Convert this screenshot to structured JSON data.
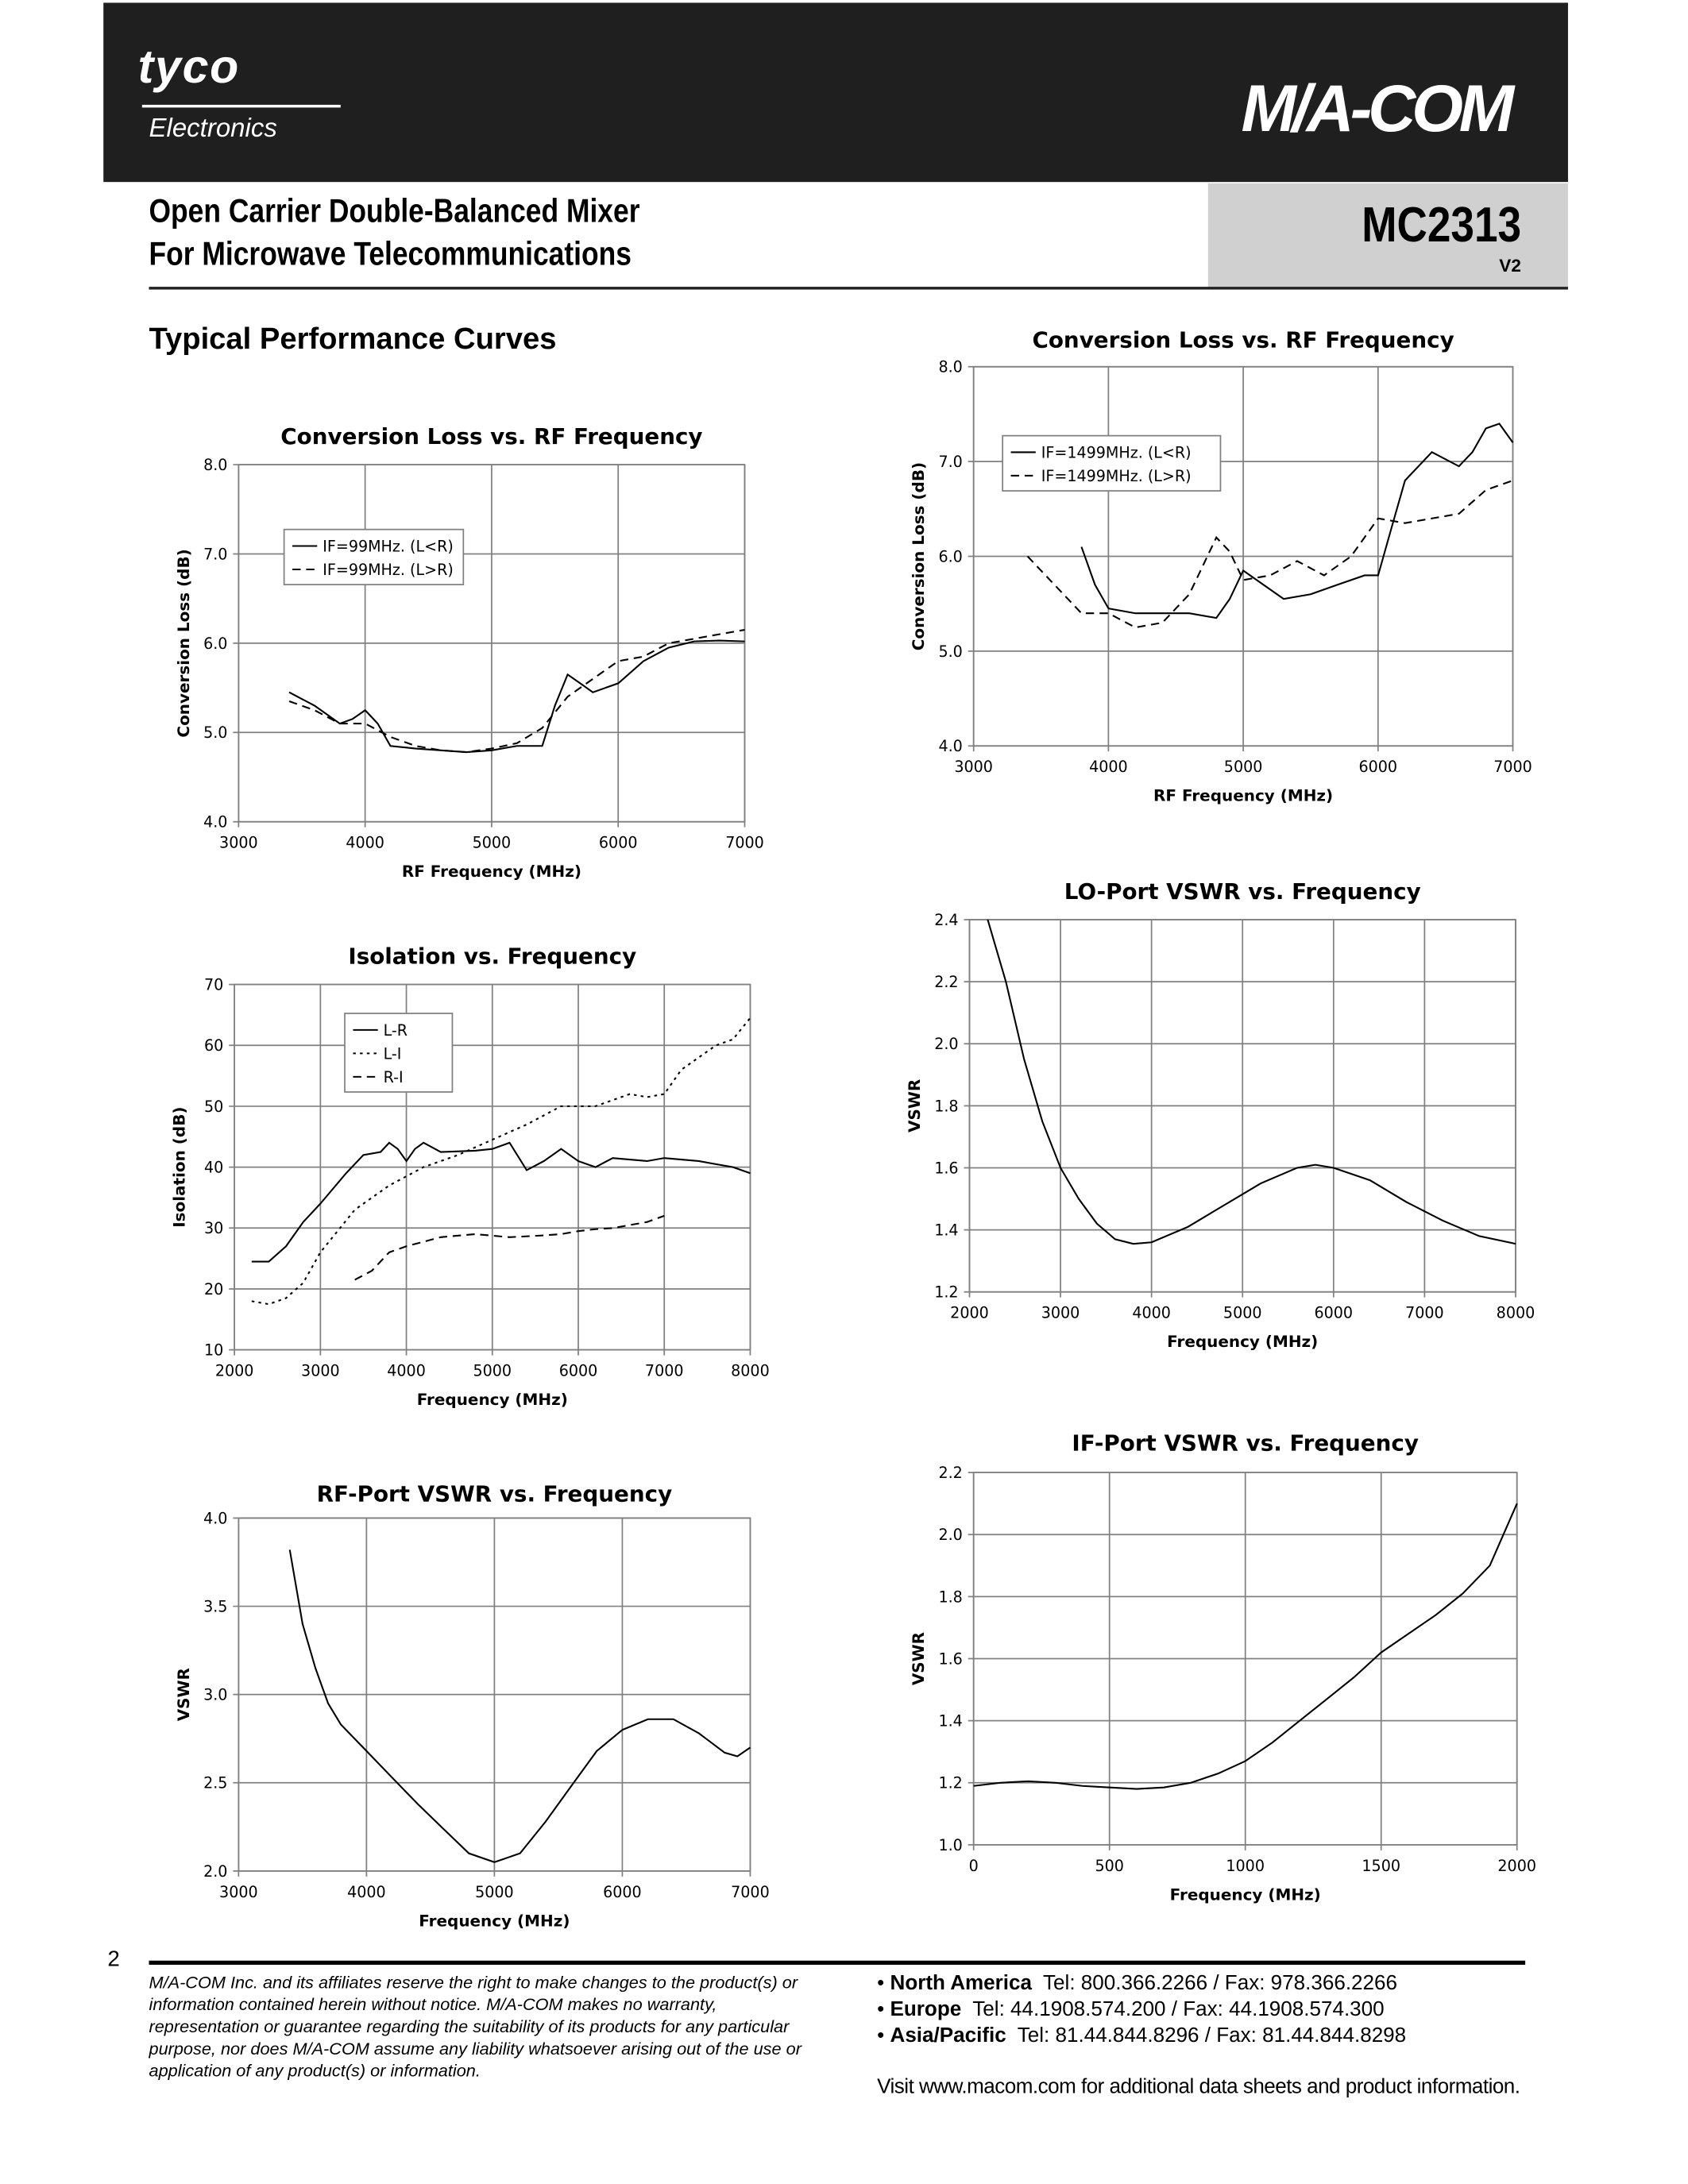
{
  "header": {
    "brand_left": "tyco",
    "brand_left_sub": "Electronics",
    "brand_right": "M/A-COM",
    "title_line1": "Open Carrier Double-Balanced Mixer",
    "title_line2": "For Microwave Telecommunications",
    "part_number": "MC2313",
    "version": "V2"
  },
  "section_title": "Typical Performance Curves",
  "colors": {
    "header_bg": "#1f1f1f",
    "part_box": "#d0d0d0",
    "grid": "#808080"
  },
  "chart_data": [
    {
      "type": "line",
      "title": "Conversion Loss vs. RF Frequency",
      "xlabel": "RF Frequency (MHz)",
      "ylabel": "Conversion Loss (dB)",
      "xlim": [
        3000,
        7000
      ],
      "ylim": [
        4.0,
        8.0
      ],
      "xticks": [
        "3000",
        "4000",
        "5000",
        "6000",
        "7000"
      ],
      "yticks": [
        "4.0",
        "5.0",
        "6.0",
        "7.0",
        "8.0"
      ],
      "grid": true,
      "legend": "upper-left",
      "series": [
        {
          "name": "IF=99MHz. (L<R)",
          "style": "solid",
          "x": [
            3400,
            3600,
            3800,
            3900,
            4000,
            4100,
            4200,
            4400,
            4600,
            4800,
            5000,
            5200,
            5400,
            5500,
            5600,
            5700,
            5800,
            6000,
            6200,
            6400,
            6600,
            6800,
            7000
          ],
          "y": [
            5.45,
            5.3,
            5.1,
            5.15,
            5.25,
            5.1,
            4.85,
            4.82,
            4.8,
            4.78,
            4.8,
            4.85,
            4.85,
            5.3,
            5.65,
            5.55,
            5.45,
            5.55,
            5.8,
            5.95,
            6.02,
            6.03,
            6.02
          ]
        },
        {
          "name": "IF=99MHz. (L>R)",
          "style": "dashed",
          "x": [
            3400,
            3600,
            3800,
            4000,
            4200,
            4400,
            4600,
            4800,
            5000,
            5200,
            5400,
            5600,
            5800,
            6000,
            6200,
            6400,
            6600,
            6800,
            7000
          ],
          "y": [
            5.35,
            5.25,
            5.1,
            5.1,
            4.95,
            4.85,
            4.8,
            4.78,
            4.82,
            4.88,
            5.05,
            5.4,
            5.6,
            5.8,
            5.85,
            6.0,
            6.05,
            6.1,
            6.15
          ]
        }
      ]
    },
    {
      "type": "line",
      "title": "Conversion Loss vs. RF Frequency",
      "xlabel": "RF Frequency (MHz)",
      "ylabel": "Conversion Loss (dB)",
      "xlim": [
        3000,
        7000
      ],
      "ylim": [
        4.0,
        8.0
      ],
      "xticks": [
        "3000",
        "4000",
        "5000",
        "6000",
        "7000"
      ],
      "yticks": [
        "4.0",
        "5.0",
        "6.0",
        "7.0",
        "8.0"
      ],
      "grid": true,
      "legend": "upper-left",
      "series": [
        {
          "name": "IF=1499MHz. (L<R)",
          "style": "solid",
          "x": [
            3800,
            3900,
            4000,
            4200,
            4400,
            4600,
            4800,
            4900,
            5000,
            5100,
            5300,
            5500,
            5700,
            5900,
            6000,
            6100,
            6200,
            6400,
            6600,
            6700,
            6800,
            6900,
            7000
          ],
          "y": [
            6.1,
            5.7,
            5.45,
            5.4,
            5.4,
            5.4,
            5.35,
            5.55,
            5.85,
            5.75,
            5.55,
            5.6,
            5.7,
            5.8,
            5.8,
            6.3,
            6.8,
            7.1,
            6.95,
            7.1,
            7.35,
            7.4,
            7.2
          ]
        },
        {
          "name": "IF=1499MHz. (L>R)",
          "style": "dashed",
          "x": [
            3400,
            3600,
            3800,
            4000,
            4200,
            4400,
            4600,
            4800,
            4900,
            5000,
            5200,
            5400,
            5600,
            5800,
            6000,
            6200,
            6400,
            6600,
            6800,
            7000
          ],
          "y": [
            6.0,
            5.7,
            5.4,
            5.4,
            5.25,
            5.3,
            5.6,
            6.2,
            6.05,
            5.75,
            5.8,
            5.95,
            5.8,
            6.0,
            6.4,
            6.35,
            6.4,
            6.45,
            6.7,
            6.8
          ]
        }
      ]
    },
    {
      "type": "line",
      "title": "Isolation vs. Frequency",
      "xlabel": "Frequency (MHz)",
      "ylabel": "Isolation (dB)",
      "xlim": [
        2000,
        8000
      ],
      "ylim": [
        10,
        70
      ],
      "xticks": [
        "2000",
        "3000",
        "4000",
        "5000",
        "6000",
        "7000",
        "8000"
      ],
      "yticks": [
        "10",
        "20",
        "30",
        "40",
        "50",
        "60",
        "70"
      ],
      "grid": true,
      "legend": "upper-left",
      "series": [
        {
          "name": "L-R",
          "style": "solid",
          "x": [
            2200,
            2400,
            2600,
            2800,
            3000,
            3300,
            3500,
            3700,
            3800,
            3900,
            4000,
            4100,
            4200,
            4400,
            4800,
            5000,
            5200,
            5400,
            5600,
            5800,
            6000,
            6200,
            6400,
            6800,
            7000,
            7400,
            7800,
            8000
          ],
          "y": [
            24.5,
            24.5,
            27,
            31,
            34,
            39,
            42,
            42.5,
            44,
            43,
            41,
            43,
            44,
            42.5,
            42.7,
            43,
            44,
            39.5,
            41,
            43,
            41,
            40,
            41.5,
            41,
            41.5,
            41,
            40,
            39
          ]
        },
        {
          "name": "L-I",
          "style": "dotted",
          "x": [
            2200,
            2400,
            2600,
            2800,
            3000,
            3400,
            3800,
            4200,
            4600,
            5000,
            5400,
            5800,
            6200,
            6600,
            6800,
            7000,
            7200,
            7600,
            7800,
            8000
          ],
          "y": [
            18,
            17.5,
            18.5,
            21,
            26,
            33,
            37,
            40,
            42,
            44.5,
            47,
            50,
            50,
            52,
            51.5,
            52,
            56,
            60,
            61,
            64.5
          ]
        },
        {
          "name": "R-I",
          "style": "dashed",
          "x": [
            3400,
            3600,
            3800,
            4000,
            4400,
            4800,
            5200,
            5600,
            5800,
            6000,
            6200,
            6400,
            6800,
            7000
          ],
          "y": [
            21.5,
            23,
            26,
            27,
            28.5,
            29,
            28.5,
            28.8,
            29,
            29.5,
            29.8,
            30,
            31,
            32
          ]
        }
      ]
    },
    {
      "type": "line",
      "title": "LO-Port VSWR vs. Frequency",
      "xlabel": "Frequency (MHz)",
      "ylabel": "VSWR",
      "xlim": [
        2000,
        8000
      ],
      "ylim": [
        1.2,
        2.4
      ],
      "xticks": [
        "2000",
        "3000",
        "4000",
        "5000",
        "6000",
        "7000",
        "8000"
      ],
      "yticks": [
        "1.2",
        "1.4",
        "1.6",
        "1.8",
        "2.0",
        "2.2",
        "2.4"
      ],
      "grid": true,
      "series": [
        {
          "style": "solid",
          "x": [
            2200,
            2400,
            2600,
            2800,
            3000,
            3200,
            3400,
            3600,
            3800,
            4000,
            4400,
            4800,
            5200,
            5600,
            5800,
            6000,
            6400,
            6800,
            7200,
            7600,
            8000
          ],
          "y": [
            2.4,
            2.2,
            1.95,
            1.75,
            1.6,
            1.5,
            1.42,
            1.37,
            1.355,
            1.36,
            1.41,
            1.48,
            1.55,
            1.6,
            1.61,
            1.6,
            1.56,
            1.49,
            1.43,
            1.38,
            1.355
          ]
        }
      ]
    },
    {
      "type": "line",
      "title": "RF-Port VSWR vs. Frequency",
      "xlabel": "Frequency (MHz)",
      "ylabel": "VSWR",
      "xlim": [
        3000,
        7000
      ],
      "ylim": [
        2.0,
        4.0
      ],
      "xticks": [
        "3000",
        "4000",
        "5000",
        "6000",
        "7000"
      ],
      "yticks": [
        "2.0",
        "2.5",
        "3.0",
        "3.5",
        "4.0"
      ],
      "grid": true,
      "series": [
        {
          "style": "solid",
          "x": [
            3400,
            3500,
            3600,
            3700,
            3800,
            4000,
            4200,
            4400,
            4600,
            4800,
            5000,
            5200,
            5400,
            5600,
            5800,
            6000,
            6200,
            6400,
            6600,
            6800,
            6900,
            7000
          ],
          "y": [
            3.82,
            3.4,
            3.15,
            2.95,
            2.83,
            2.68,
            2.53,
            2.38,
            2.24,
            2.1,
            2.05,
            2.1,
            2.28,
            2.48,
            2.68,
            2.8,
            2.86,
            2.86,
            2.78,
            2.67,
            2.65,
            2.7
          ]
        }
      ]
    },
    {
      "type": "line",
      "title": "IF-Port VSWR vs. Frequency",
      "xlabel": "Frequency (MHz)",
      "ylabel": "VSWR",
      "xlim": [
        0,
        2000
      ],
      "ylim": [
        1.0,
        2.2
      ],
      "xticks": [
        "0",
        "500",
        "1000",
        "1500",
        "2000"
      ],
      "yticks": [
        "1.0",
        "1.2",
        "1.4",
        "1.6",
        "1.8",
        "2.0",
        "2.2"
      ],
      "grid": true,
      "series": [
        {
          "style": "solid",
          "x": [
            0,
            100,
            200,
            300,
            400,
            500,
            600,
            700,
            800,
            900,
            1000,
            1100,
            1200,
            1300,
            1400,
            1500,
            1600,
            1700,
            1800,
            1900,
            2000
          ],
          "y": [
            1.19,
            1.2,
            1.205,
            1.2,
            1.19,
            1.185,
            1.18,
            1.185,
            1.2,
            1.23,
            1.27,
            1.33,
            1.4,
            1.47,
            1.54,
            1.62,
            1.68,
            1.74,
            1.81,
            1.9,
            2.1
          ]
        }
      ]
    }
  ],
  "footer": {
    "page_number": "2",
    "disclaimer": "M/A-COM Inc. and its affiliates reserve the right to make changes to the product(s) or information contained herein without notice. M/A-COM makes no warranty, representation or guarantee regarding the suitability of its products for any particular purpose, nor does M/A-COM assume any liability whatsoever arising out of the use or application of any product(s) or information.",
    "contacts": [
      {
        "region": "North America",
        "text": "Tel: 800.366.2266 / Fax: 978.366.2266"
      },
      {
        "region": "Europe",
        "text": "Tel: 44.1908.574.200 / Fax: 44.1908.574.300"
      },
      {
        "region": "Asia/Pacific",
        "text": "Tel: 81.44.844.8296 / Fax: 81.44.844.8298"
      }
    ],
    "visit": "Visit www.macom.com for additional data sheets and product information."
  }
}
